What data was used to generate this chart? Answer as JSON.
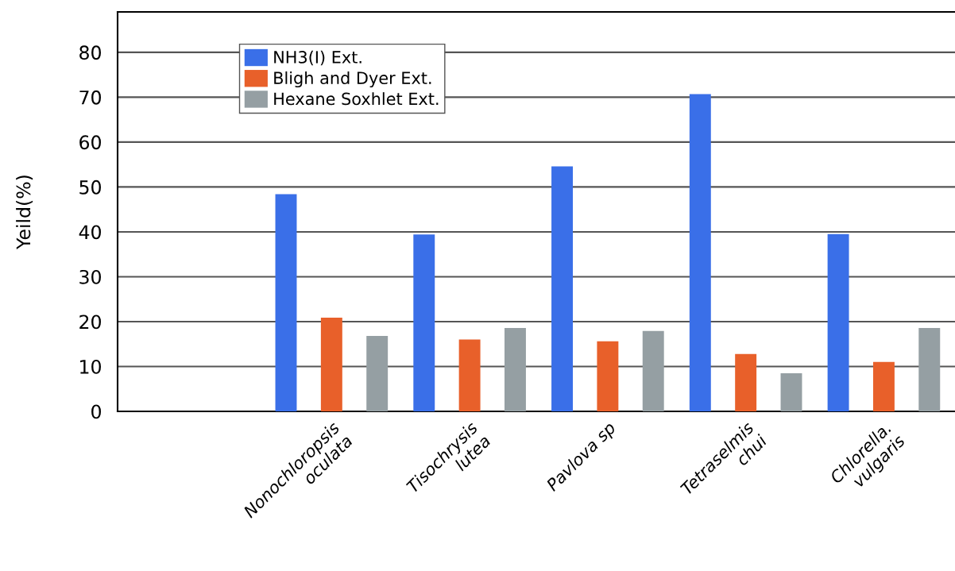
{
  "chart_data": {
    "type": "bar",
    "ylabel": "Yeild(%)",
    "categories": [
      null,
      "Nonochloropsis\noculata",
      "Tisochrysis\nlutea",
      "Pavlova sp",
      "Tetraselmis\nchui",
      "Chlorella.\nvulgaris"
    ],
    "series": [
      {
        "name": "NH3(I) Ext.",
        "color": "#3a6fe8",
        "values": [
          null,
          48.4,
          39.4,
          54.6,
          70.7,
          39.5
        ]
      },
      {
        "name": "Bligh and Dyer Ext.",
        "color": "#e8602a",
        "values": [
          null,
          20.9,
          16.0,
          15.6,
          12.8,
          11.0
        ]
      },
      {
        "name": "Hexane Soxhlet Ext.",
        "color": "#959fa3",
        "values": [
          null,
          16.8,
          18.6,
          17.9,
          8.5,
          18.6
        ]
      }
    ],
    "ylim": [
      0,
      89
    ],
    "yticks": [
      0,
      10,
      20,
      30,
      40,
      50,
      60,
      70,
      80
    ],
    "grid": "y",
    "legend": "top left"
  }
}
